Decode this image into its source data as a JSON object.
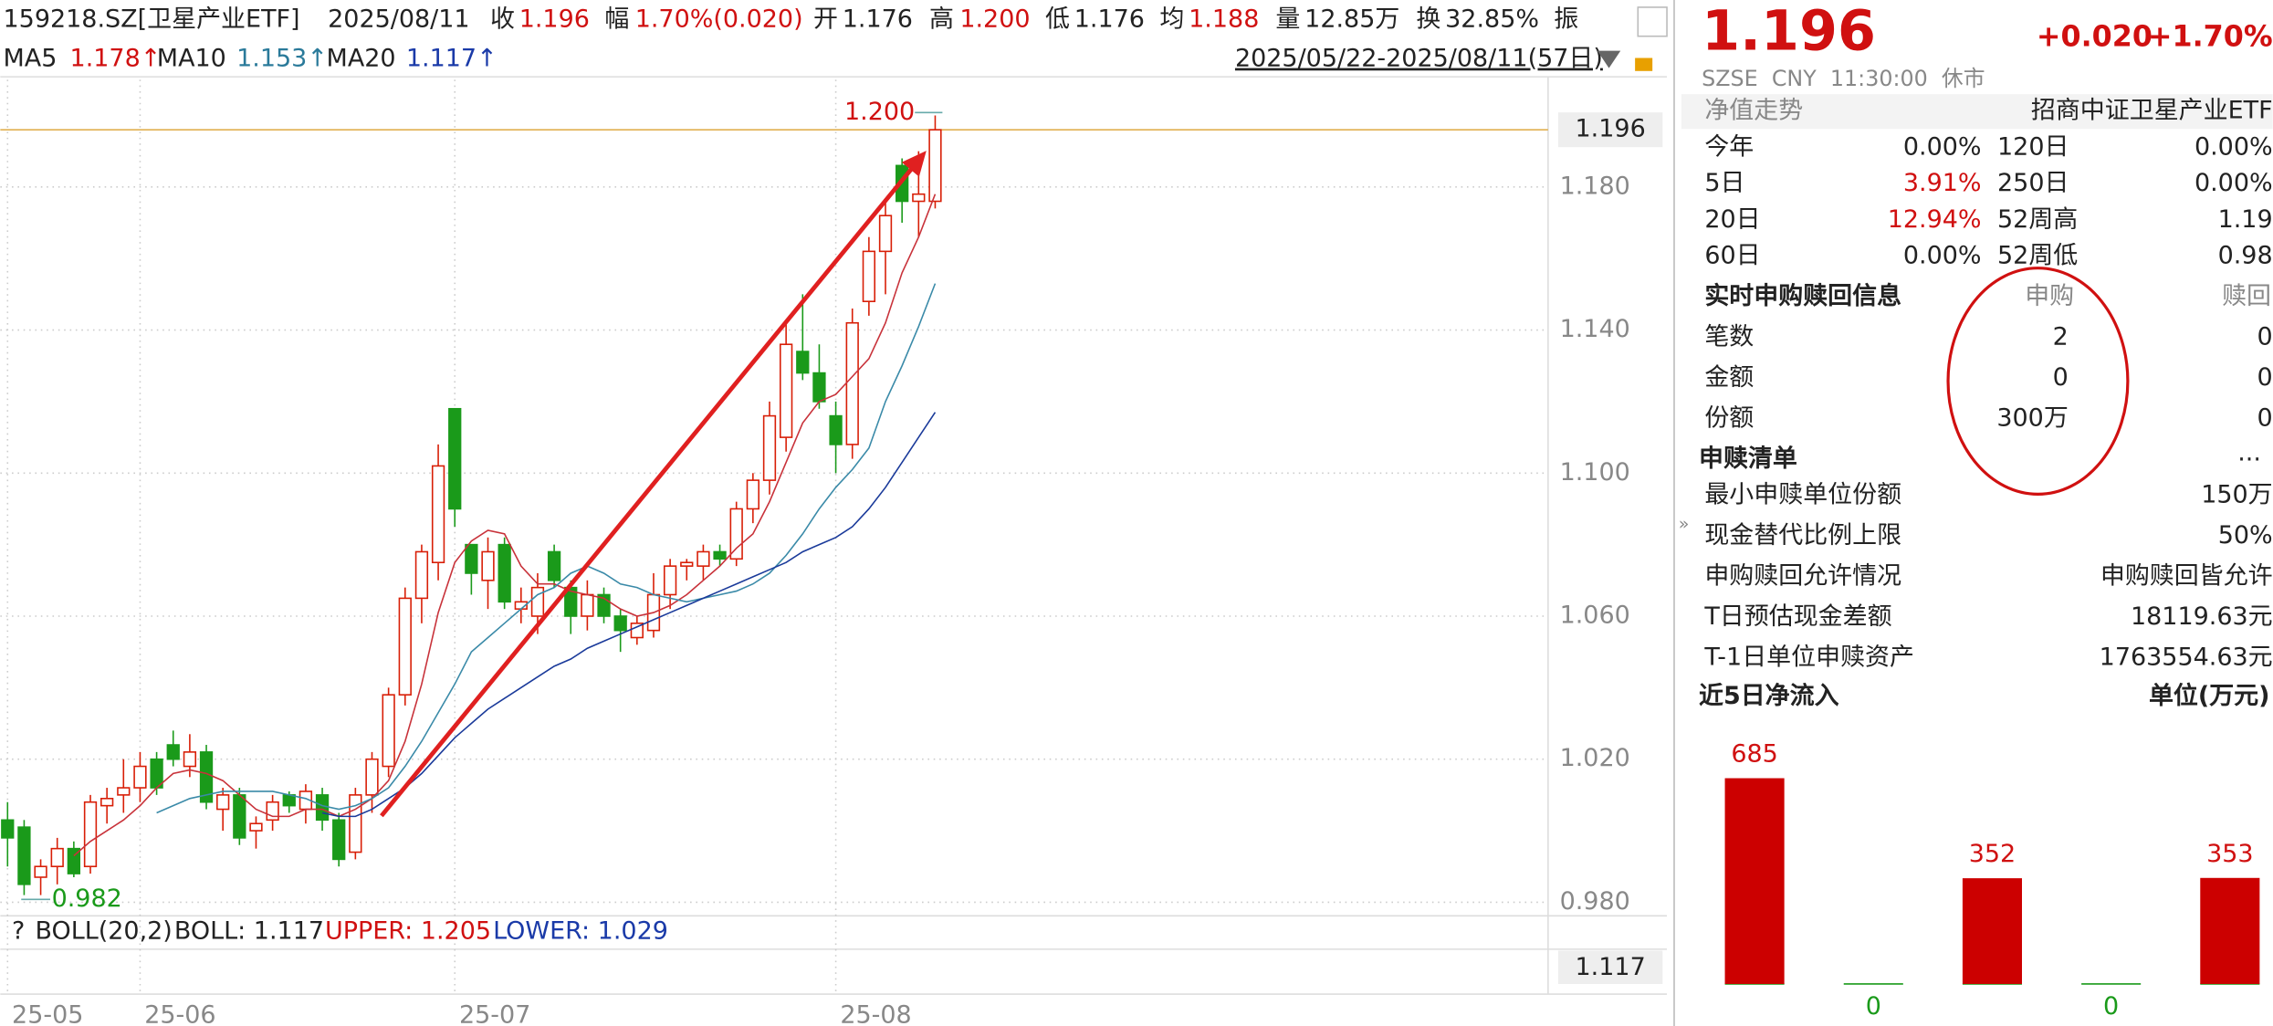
{
  "header": {
    "code": "159218.SZ[卫星产业ETF]",
    "date": "2025/08/11",
    "fields": [
      {
        "label": "收",
        "value": "1.196"
      },
      {
        "label": "幅",
        "value": "1.70%(0.020)"
      },
      {
        "label": "开",
        "value": "1.176"
      },
      {
        "label": "高",
        "value": "1.200"
      },
      {
        "label": "低",
        "value": "1.176"
      },
      {
        "label": "均",
        "value": "1.188"
      },
      {
        "label": "量",
        "value": "12.85万"
      },
      {
        "label": "换",
        "value": "32.85%"
      },
      {
        "label": "振"
      }
    ],
    "range": "2025/05/22-2025/08/11(57日)"
  },
  "chart_data": [
    {
      "type": "candlestick",
      "ylim": [
        0.977,
        1.21
      ],
      "yticks": [
        {
          "value": 0.98,
          "label": "0.980"
        },
        {
          "value": 1.02,
          "label": "1.020"
        },
        {
          "value": 1.06,
          "label": "1.060"
        },
        {
          "value": 1.1,
          "label": "1.100"
        },
        {
          "value": 1.14,
          "label": "1.140"
        },
        {
          "value": 1.18,
          "label": "1.180"
        }
      ],
      "xticks": [
        {
          "value": 0,
          "label": "25-05"
        },
        {
          "value": 8,
          "label": "25-06"
        },
        {
          "value": 27,
          "label": "25-07"
        },
        {
          "value": 50,
          "label": "25-08"
        }
      ],
      "last_price": 1.196,
      "high": {
        "index": 56,
        "value": 1.2,
        "label": "1.200"
      },
      "low": {
        "index": 1,
        "value": 0.982,
        "label": "0.982"
      },
      "up_color": "#d81e06",
      "down_color": "#1a9a1a",
      "open": [
        1.003,
        1.001,
        0.987,
        0.99,
        0.995,
        0.99,
        1.007,
        1.01,
        1.012,
        1.02,
        1.024,
        1.018,
        1.022,
        1.006,
        1.01,
        1.0,
        1.003,
        1.01,
        1.006,
        1.01,
        1.003,
        0.994,
        1.01,
        1.018,
        1.038,
        1.065,
        1.075,
        1.118,
        1.08,
        1.07,
        1.08,
        1.062,
        1.06,
        1.078,
        1.068,
        1.06,
        1.066,
        1.06,
        1.054,
        1.056,
        1.066,
        1.074,
        1.074,
        1.078,
        1.076,
        1.09,
        1.098,
        1.11,
        1.134,
        1.128,
        1.116,
        1.108,
        1.148,
        1.162,
        1.186,
        1.176,
        1.176
      ],
      "high_values": [
        1.008,
        1.003,
        0.992,
        0.998,
        0.997,
        1.01,
        1.012,
        1.02,
        1.022,
        1.022,
        1.028,
        1.027,
        1.024,
        1.012,
        1.012,
        1.004,
        1.01,
        1.011,
        1.013,
        1.012,
        1.005,
        1.012,
        1.022,
        1.04,
        1.068,
        1.08,
        1.108,
        1.118,
        1.08,
        1.082,
        1.082,
        1.068,
        1.072,
        1.08,
        1.07,
        1.07,
        1.068,
        1.062,
        1.06,
        1.072,
        1.076,
        1.076,
        1.08,
        1.08,
        1.092,
        1.1,
        1.12,
        1.142,
        1.15,
        1.136,
        1.12,
        1.146,
        1.166,
        1.176,
        1.188,
        1.19,
        1.2
      ],
      "low_values": [
        0.99,
        0.982,
        0.982,
        0.985,
        0.987,
        0.988,
        1.002,
        1.005,
        1.008,
        1.01,
        1.018,
        1.015,
        1.006,
        1.0,
        0.996,
        0.995,
        1.0,
        1.005,
        1.002,
        1.0,
        0.99,
        0.992,
        1.005,
        1.015,
        1.035,
        1.058,
        1.07,
        1.085,
        1.066,
        1.062,
        1.062,
        1.058,
        1.055,
        1.068,
        1.055,
        1.056,
        1.058,
        1.05,
        1.052,
        1.054,
        1.062,
        1.07,
        1.07,
        1.074,
        1.074,
        1.086,
        1.094,
        1.106,
        1.126,
        1.118,
        1.1,
        1.104,
        1.144,
        1.15,
        1.17,
        1.166,
        1.174
      ],
      "close": [
        0.998,
        0.985,
        0.99,
        0.995,
        0.988,
        1.008,
        1.009,
        1.012,
        1.018,
        1.012,
        1.02,
        1.022,
        1.008,
        1.01,
        0.998,
        1.002,
        1.008,
        1.007,
        1.011,
        1.003,
        0.992,
        1.01,
        1.02,
        1.038,
        1.065,
        1.078,
        1.102,
        1.09,
        1.072,
        1.078,
        1.064,
        1.064,
        1.068,
        1.07,
        1.06,
        1.066,
        1.06,
        1.056,
        1.058,
        1.066,
        1.074,
        1.075,
        1.078,
        1.076,
        1.09,
        1.098,
        1.116,
        1.136,
        1.128,
        1.12,
        1.108,
        1.142,
        1.162,
        1.172,
        1.176,
        1.178,
        1.196
      ],
      "series": [
        {
          "name": "MA5",
          "label": "1.178↑",
          "color": "#c8323a",
          "values": [
            null,
            null,
            null,
            null,
            0.993,
            0.997,
            1.0,
            1.003,
            1.007,
            1.012,
            1.016,
            1.017,
            1.016,
            1.014,
            1.01,
            1.006,
            1.004,
            1.004,
            1.006,
            1.006,
            1.004,
            1.006,
            1.009,
            1.014,
            1.025,
            1.041,
            1.061,
            1.075,
            1.081,
            1.084,
            1.083,
            1.074,
            1.069,
            1.069,
            1.067,
            1.066,
            1.065,
            1.062,
            1.06,
            1.061,
            1.063,
            1.066,
            1.07,
            1.074,
            1.079,
            1.083,
            1.092,
            1.103,
            1.114,
            1.12,
            1.122,
            1.127,
            1.132,
            1.142,
            1.156,
            1.166,
            1.178
          ]
        },
        {
          "name": "MA10",
          "label": "1.153↑",
          "color": "#3a8aa8",
          "values": [
            null,
            null,
            null,
            null,
            null,
            null,
            null,
            null,
            null,
            1.005,
            1.007,
            1.009,
            1.01,
            1.011,
            1.011,
            1.011,
            1.011,
            1.01,
            1.009,
            1.007,
            1.006,
            1.007,
            1.009,
            1.012,
            1.018,
            1.025,
            1.033,
            1.041,
            1.05,
            1.054,
            1.058,
            1.062,
            1.066,
            1.068,
            1.072,
            1.074,
            1.072,
            1.069,
            1.068,
            1.066,
            1.065,
            1.064,
            1.065,
            1.066,
            1.067,
            1.069,
            1.072,
            1.077,
            1.083,
            1.09,
            1.096,
            1.101,
            1.107,
            1.12,
            1.13,
            1.141,
            1.153
          ]
        },
        {
          "name": "MA20",
          "label": "1.117↑",
          "color": "#1a3a9a",
          "values": [
            null,
            null,
            null,
            null,
            null,
            null,
            null,
            null,
            null,
            null,
            null,
            null,
            null,
            null,
            null,
            null,
            null,
            null,
            null,
            1.005,
            1.004,
            1.004,
            1.006,
            1.009,
            1.012,
            1.016,
            1.021,
            1.026,
            1.03,
            1.034,
            1.037,
            1.04,
            1.043,
            1.046,
            1.048,
            1.051,
            1.053,
            1.055,
            1.057,
            1.059,
            1.061,
            1.063,
            1.065,
            1.067,
            1.069,
            1.071,
            1.073,
            1.075,
            1.078,
            1.08,
            1.082,
            1.085,
            1.09,
            1.096,
            1.103,
            1.11,
            1.117
          ]
        }
      ],
      "boll": {
        "help": "?",
        "name": "BOLL(20,2)",
        "mid": "BOLL: 1.117",
        "upper": "UPPER: 1.205",
        "lower": "LOWER: 1.029",
        "tag": "1.117"
      }
    },
    {
      "type": "bar",
      "title": "近5日净流入",
      "unit": "单位(万元)",
      "color": "#cc0000",
      "zero_color": "#1a9a1a",
      "values": [
        685,
        0,
        352,
        0,
        353
      ]
    }
  ],
  "quote": {
    "price": "1.196",
    "change": "+0.020",
    "change_pct": "+1.70%",
    "status": "SZSE  CNY  11:30:00  休市"
  },
  "nav": {
    "title": "净值走势",
    "name": "招商中证卫星产业ETF",
    "rows": [
      [
        "今年",
        "0.00%",
        "120日",
        "0.00%"
      ],
      [
        "5日",
        "3.91%",
        "250日",
        "0.00%"
      ],
      [
        "20日",
        "12.94%",
        "52周高",
        "1.19"
      ],
      [
        "60日",
        "0.00%",
        "52周低",
        "0.98"
      ]
    ]
  },
  "subscription": {
    "title": "实时申购赎回信息",
    "col1": "申购",
    "col2": "赎回",
    "rows": [
      [
        "笔数",
        "2",
        "0"
      ],
      [
        "金额",
        "0",
        "0"
      ],
      [
        "份额",
        "300万",
        "0"
      ]
    ]
  },
  "list": {
    "title": "申赎清单",
    "more": "...",
    "rows": [
      [
        "最小申赎单位份额",
        "150万"
      ],
      [
        "现金替代比例上限",
        "50%"
      ],
      [
        "申购赎回允许情况",
        "申购赎回皆允许"
      ],
      [
        "T日预估现金差额",
        "18119.63元"
      ],
      [
        "T-1日单位申赎资产",
        "1763554.63元"
      ]
    ]
  }
}
